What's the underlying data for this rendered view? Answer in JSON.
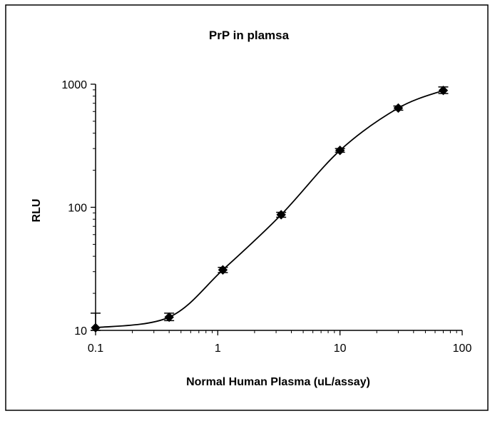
{
  "chart_data": {
    "type": "scatter",
    "title": "PrP in plamsa",
    "xlabel": "Normal Human Plasma (uL/assay)",
    "ylabel": "RLU",
    "x_scale": "log",
    "y_scale": "log",
    "xlim": [
      0.1,
      100
    ],
    "ylim": [
      10,
      1000
    ],
    "x_ticks": [
      "0.1",
      "1",
      "10",
      "100"
    ],
    "y_ticks": [
      "10",
      "100",
      "1000"
    ],
    "grid": false,
    "legend": "none",
    "colors": {
      "line": "#000000",
      "marker": "#000000",
      "frame": "#000000"
    },
    "series": [
      {
        "x": [
          0.1,
          0.4,
          1.1,
          3.3,
          10,
          30,
          70
        ],
        "y": [
          10.5,
          12.8,
          31,
          87,
          290,
          640,
          890
        ],
        "y_err_low": [
          10.0,
          12.0,
          29.5,
          83,
          280,
          615,
          840
        ],
        "y_err_high": [
          13.8,
          13.8,
          32.5,
          91,
          300,
          665,
          950
        ]
      }
    ]
  }
}
